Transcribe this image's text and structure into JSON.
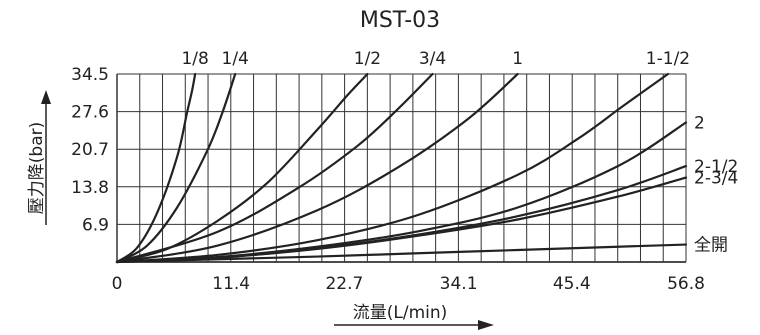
{
  "chart_data": {
    "type": "line",
    "title": "MST-03",
    "xlabel": "流量(L/min)",
    "ylabel": "壓力降(bar)",
    "xlim": [
      0,
      56.8
    ],
    "ylim": [
      0,
      34.5
    ],
    "x_ticks": [
      "0",
      "11.4",
      "22.7",
      "34.1",
      "45.4",
      "56.8"
    ],
    "y_ticks": [
      "6.9",
      "13.8",
      "20.7",
      "27.6",
      "34.5"
    ],
    "grid": true,
    "series": [
      {
        "name": "1/8",
        "points": [
          [
            0,
            0
          ],
          [
            2,
            2.6
          ],
          [
            4,
            9.0
          ],
          [
            6,
            19.3
          ],
          [
            7,
            27.5
          ],
          [
            7.5,
            31.5
          ],
          [
            7.8,
            34.5
          ]
        ]
      },
      {
        "name": "1/4",
        "points": [
          [
            0,
            0
          ],
          [
            3,
            3.0
          ],
          [
            6,
            10.0
          ],
          [
            9,
            20.4
          ],
          [
            10.5,
            27.3
          ],
          [
            11.8,
            34.5
          ]
        ]
      },
      {
        "name": "1/2",
        "points": [
          [
            0,
            0
          ],
          [
            5,
            2.4
          ],
          [
            10,
            7.5
          ],
          [
            15,
            14.5
          ],
          [
            20,
            24.3
          ],
          [
            23,
            30.6
          ],
          [
            25,
            34.5
          ]
        ]
      },
      {
        "name": "3/4",
        "points": [
          [
            0,
            0
          ],
          [
            10,
            5.5
          ],
          [
            18,
            13.5
          ],
          [
            24,
            21.3
          ],
          [
            28,
            28.0
          ],
          [
            31.5,
            34.5
          ]
        ]
      },
      {
        "name": "1",
        "points": [
          [
            0,
            0
          ],
          [
            10,
            3.0
          ],
          [
            20,
            9.5
          ],
          [
            28,
            17.3
          ],
          [
            35,
            26.2
          ],
          [
            40,
            34.5
          ]
        ]
      },
      {
        "name": "1-1/2",
        "points": [
          [
            0,
            0
          ],
          [
            10,
            1.3
          ],
          [
            20,
            4.0
          ],
          [
            30,
            8.6
          ],
          [
            40,
            16.0
          ],
          [
            46,
            22.6
          ],
          [
            50.5,
            28.6
          ],
          [
            55,
            34.5
          ]
        ]
      },
      {
        "name": "2",
        "points": [
          [
            0,
            0
          ],
          [
            10,
            0.9
          ],
          [
            20,
            2.8
          ],
          [
            30,
            5.6
          ],
          [
            40,
            10.0
          ],
          [
            50,
            17.6
          ],
          [
            56.8,
            25.6
          ]
        ]
      },
      {
        "name": "2-1/2",
        "points": [
          [
            0,
            0
          ],
          [
            10,
            0.8
          ],
          [
            20,
            2.5
          ],
          [
            30,
            5.0
          ],
          [
            40,
            8.4
          ],
          [
            50,
            13.2
          ],
          [
            56.8,
            17.6
          ]
        ]
      },
      {
        "name": "2-3/4",
        "points": [
          [
            0,
            0
          ],
          [
            10,
            0.8
          ],
          [
            20,
            2.4
          ],
          [
            30,
            4.8
          ],
          [
            40,
            7.8
          ],
          [
            50,
            12.0
          ],
          [
            56.8,
            15.5
          ]
        ]
      },
      {
        "name": "全開",
        "points": [
          [
            0,
            0
          ],
          [
            10,
            0.5
          ],
          [
            20,
            1.0
          ],
          [
            30,
            1.6
          ],
          [
            40,
            2.2
          ],
          [
            50,
            2.8
          ],
          [
            56.8,
            3.2
          ]
        ]
      }
    ]
  }
}
